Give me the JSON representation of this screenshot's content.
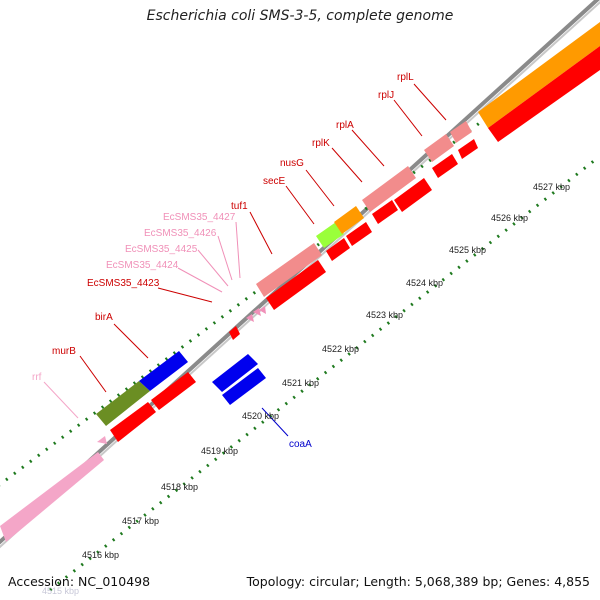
{
  "title": "Escherichia coli SMS-3-5, complete genome",
  "footer": {
    "accession_label": "Accession: NC_010498",
    "topology_label": "Topology: circular; Length: 5,068,389 bp; Genes: 4,855"
  },
  "colors": {
    "cds": "#ff0000",
    "cds_pink": "#f28c8c",
    "rrna": "#ff9a00",
    "trna": "#ff8fc0",
    "misc": "#e87ab5",
    "green": "#6b8e23",
    "lime": "#9aff3a",
    "blue": "#0000ee",
    "dots": "#1f7a1f",
    "track": "#888888"
  },
  "ticks": [
    {
      "label": "4515 kbp",
      "faded": true
    },
    {
      "label": "4516 kbp"
    },
    {
      "label": "4517 kbp"
    },
    {
      "label": "4518 kbp"
    },
    {
      "label": "4519 kbp"
    },
    {
      "label": "4520 kbp"
    },
    {
      "label": "4521 kbp"
    },
    {
      "label": "4522 kbp"
    },
    {
      "label": "4523 kbp"
    },
    {
      "label": "4524 kbp"
    },
    {
      "label": "4525 kbp"
    },
    {
      "label": "4526 kbp"
    },
    {
      "label": "4527 kbp"
    }
  ],
  "gene_labels": [
    {
      "text": "rrf",
      "color": "#f4a6c8"
    },
    {
      "text": "murB",
      "color": "#cc0000"
    },
    {
      "text": "birA",
      "color": "#cc0000"
    },
    {
      "text": "EcSMS35_4423",
      "color": "#cc0000"
    },
    {
      "text": "EcSMS35_4424",
      "color": "#f090b8"
    },
    {
      "text": "EcSMS35_4425",
      "color": "#f090b8"
    },
    {
      "text": "EcSMS35_4426",
      "color": "#f090b8"
    },
    {
      "text": "EcSMS35_4427",
      "color": "#f090b8"
    },
    {
      "text": "tuf1",
      "color": "#cc0000"
    },
    {
      "text": "secE",
      "color": "#cc0000"
    },
    {
      "text": "nusG",
      "color": "#cc0000"
    },
    {
      "text": "rplK",
      "color": "#cc0000"
    },
    {
      "text": "rplA",
      "color": "#cc0000"
    },
    {
      "text": "rplJ",
      "color": "#cc0000"
    },
    {
      "text": "rplL",
      "color": "#cc0000"
    },
    {
      "text": "coaA",
      "color": "#0000cc"
    }
  ]
}
